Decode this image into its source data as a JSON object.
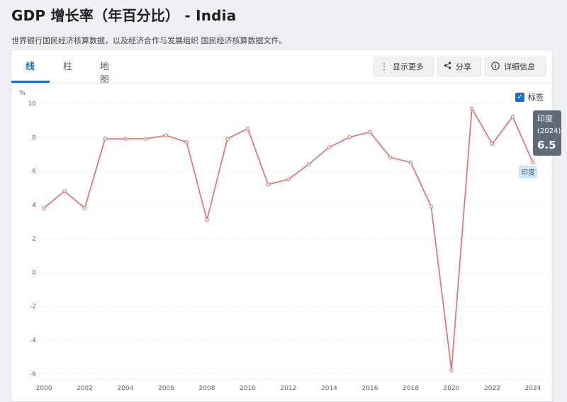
{
  "page": {
    "title": "GDP 增长率（年百分比） - India",
    "subtitle": "世界银行国民经济核算数据，以及经济合作与发展组织 国民经济核算数据文件。"
  },
  "tabs": [
    {
      "label": "线",
      "active": true
    },
    {
      "label": "柱",
      "active": false
    },
    {
      "label": "地图",
      "active": false
    }
  ],
  "toolbar": {
    "more_label": "显示更多",
    "share_label": "分享",
    "details_label": "详细信息"
  },
  "legend": {
    "checkbox_label": "标签",
    "checked": true
  },
  "tooltip": {
    "country": "印度",
    "year": "(2024)",
    "value": "6.5"
  },
  "series_label": "印度",
  "colors": {
    "line": "#e07a7a",
    "accent": "#1b6ec2",
    "tooltip_bg": "#5f6b76"
  },
  "chart_data": {
    "type": "line",
    "ylabel": "%",
    "ylim": [
      -6,
      10
    ],
    "yticks": [
      -6,
      -4,
      -2,
      0,
      2,
      4,
      6,
      8,
      10
    ],
    "xticks": [
      2000,
      2002,
      2004,
      2006,
      2008,
      2010,
      2012,
      2014,
      2016,
      2018,
      2020,
      2022,
      2024
    ],
    "xlim": [
      2000,
      2024
    ],
    "grid": true,
    "series": [
      {
        "name": "印度",
        "x": [
          2000,
          2001,
          2002,
          2003,
          2004,
          2005,
          2006,
          2007,
          2008,
          2009,
          2010,
          2011,
          2012,
          2013,
          2014,
          2015,
          2016,
          2017,
          2018,
          2019,
          2020,
          2021,
          2022,
          2023,
          2024
        ],
        "values": [
          3.8,
          4.8,
          3.8,
          7.9,
          7.9,
          7.9,
          8.1,
          7.7,
          3.1,
          7.9,
          8.5,
          5.2,
          5.5,
          6.4,
          7.4,
          8.0,
          8.3,
          6.8,
          6.5,
          3.9,
          -5.8,
          9.7,
          7.6,
          9.2,
          6.5
        ]
      }
    ]
  }
}
